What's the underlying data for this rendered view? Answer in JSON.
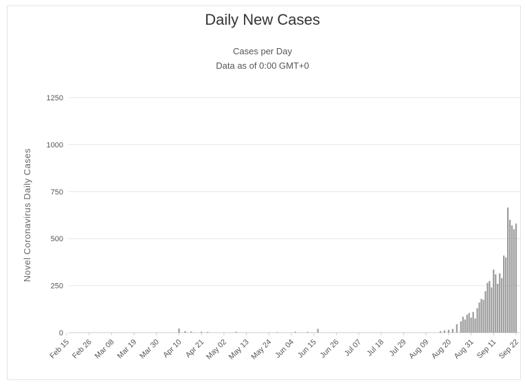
{
  "chart_data": {
    "type": "bar",
    "title": "Daily New Cases",
    "subtitle": [
      "Cases per Day",
      "Data as of 0:00 GMT+0"
    ],
    "xlabel": "",
    "ylabel": "Novel Coronavirus Daily Cases",
    "ylim": [
      0,
      1250
    ],
    "yticks": [
      0,
      250,
      500,
      750,
      1000,
      1250
    ],
    "grid": true,
    "legend": "none",
    "x_tick_labels": [
      "Feb 15",
      "Feb 26",
      "Mar 08",
      "Mar 19",
      "Mar 30",
      "Apr 10",
      "Apr 21",
      "May 02",
      "May 13",
      "May 24",
      "Jun 04",
      "Jun 15",
      "Jun 26",
      "Jul 07",
      "Jul 18",
      "Jul 29",
      "Aug 09",
      "Aug 20",
      "Aug 31",
      "Sep 11",
      "Sep 22"
    ],
    "start_date": "2020-02-15",
    "series": [
      {
        "name": "Daily Cases",
        "color": "#9a9a9a",
        "values": [
          [
            "2020-04-10",
            22
          ],
          [
            "2020-04-13",
            8
          ],
          [
            "2020-04-16",
            6
          ],
          [
            "2020-04-21",
            5
          ],
          [
            "2020-04-24",
            4
          ],
          [
            "2020-05-08",
            5
          ],
          [
            "2020-05-28",
            3
          ],
          [
            "2020-06-06",
            5
          ],
          [
            "2020-06-12",
            4
          ],
          [
            "2020-06-17",
            20
          ],
          [
            "2020-08-16",
            8
          ],
          [
            "2020-08-18",
            12
          ],
          [
            "2020-08-20",
            15
          ],
          [
            "2020-08-22",
            20
          ],
          [
            "2020-08-24",
            45
          ],
          [
            "2020-08-26",
            60
          ],
          [
            "2020-08-27",
            85
          ],
          [
            "2020-08-28",
            70
          ],
          [
            "2020-08-29",
            95
          ],
          [
            "2020-08-30",
            105
          ],
          [
            "2020-08-31",
            80
          ],
          [
            "2020-09-01",
            110
          ],
          [
            "2020-09-02",
            75
          ],
          [
            "2020-09-03",
            130
          ],
          [
            "2020-09-04",
            160
          ],
          [
            "2020-09-05",
            180
          ],
          [
            "2020-09-06",
            175
          ],
          [
            "2020-09-07",
            220
          ],
          [
            "2020-09-08",
            265
          ],
          [
            "2020-09-09",
            275
          ],
          [
            "2020-09-10",
            240
          ],
          [
            "2020-09-11",
            335
          ],
          [
            "2020-09-12",
            310
          ],
          [
            "2020-09-13",
            260
          ],
          [
            "2020-09-14",
            315
          ],
          [
            "2020-09-15",
            290
          ],
          [
            "2020-09-16",
            410
          ],
          [
            "2020-09-17",
            400
          ],
          [
            "2020-09-18",
            665
          ],
          [
            "2020-09-19",
            600
          ],
          [
            "2020-09-20",
            570
          ],
          [
            "2020-09-21",
            550
          ],
          [
            "2020-09-22",
            580
          ]
        ]
      }
    ]
  }
}
